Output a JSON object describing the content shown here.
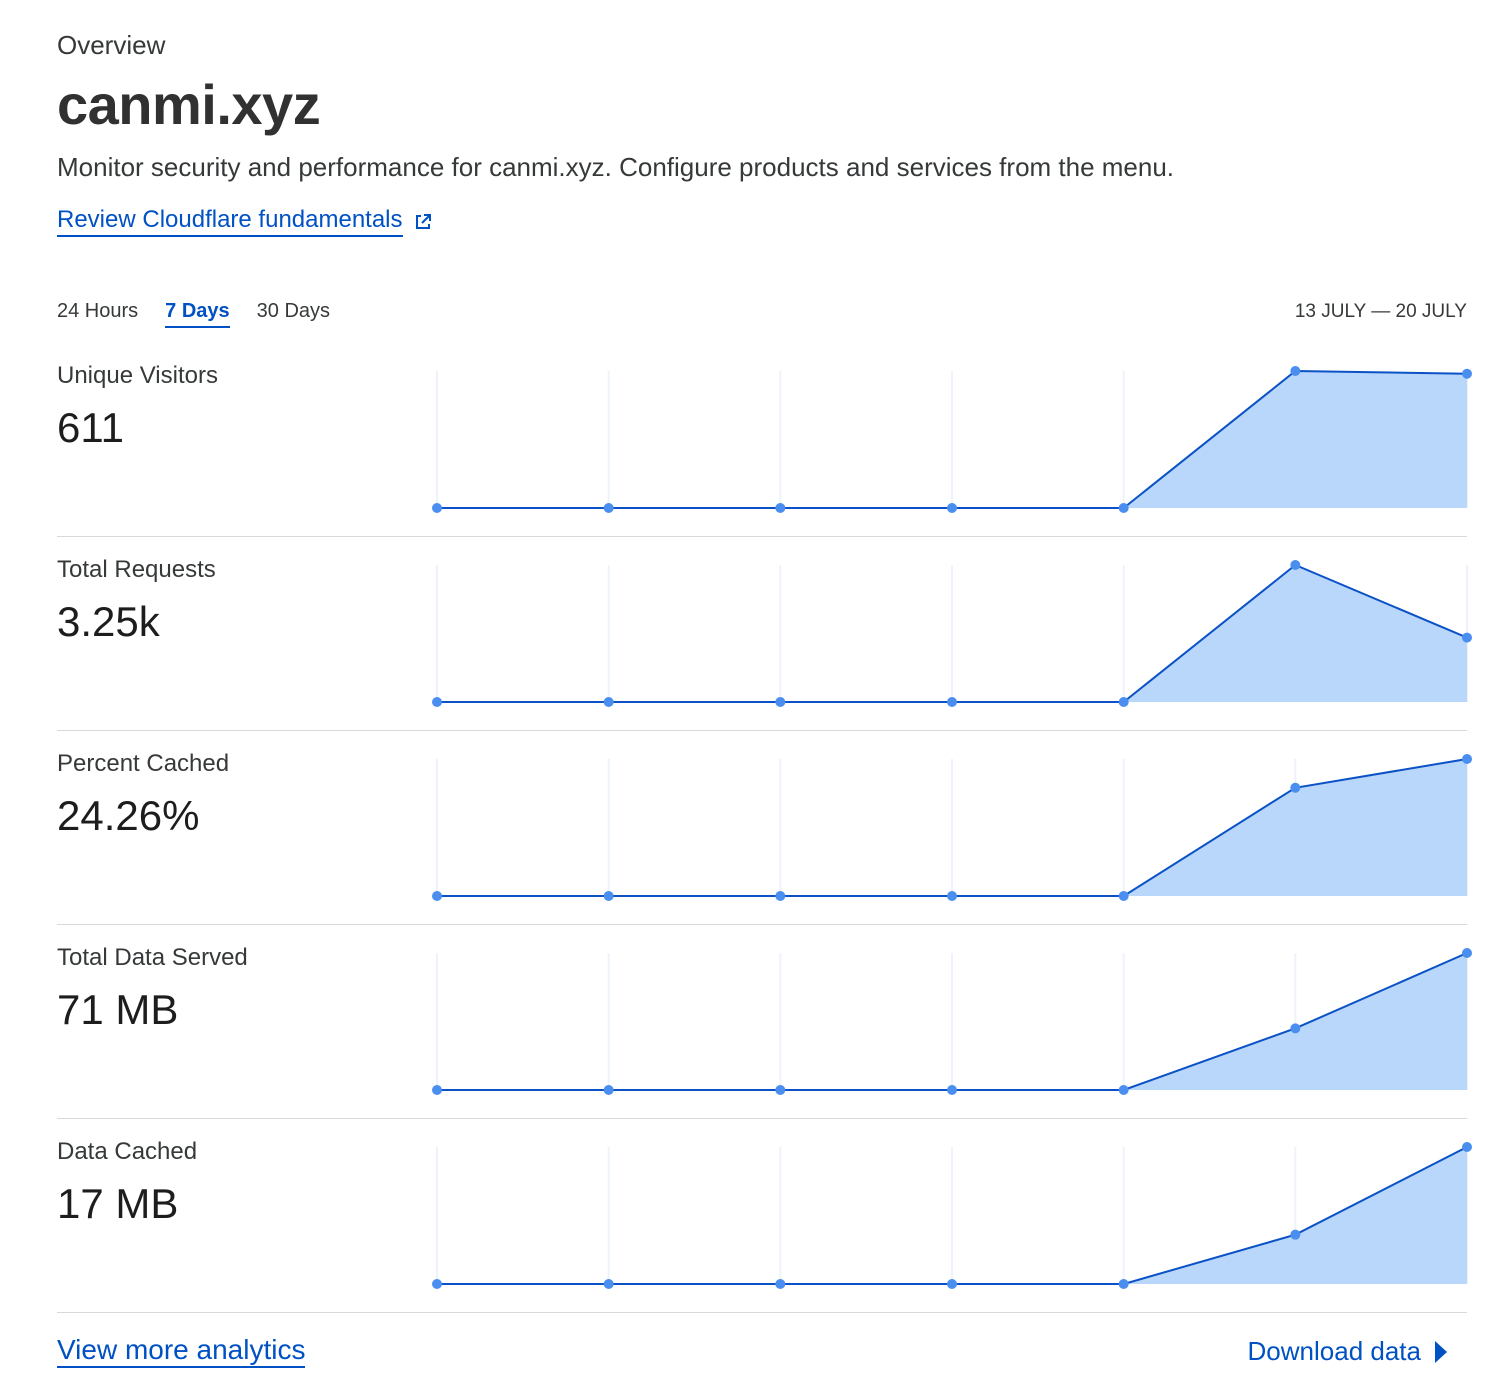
{
  "header": {
    "overview": "Overview",
    "zone": "canmi.xyz",
    "description": "Monitor security and performance for canmi.xyz. Configure products and services from the menu.",
    "fundamentals_link": "Review Cloudflare fundamentals"
  },
  "time_ranges": [
    {
      "label": "24 Hours",
      "active": false
    },
    {
      "label": "7 Days",
      "active": true
    },
    {
      "label": "30 Days",
      "active": false
    }
  ],
  "date_range": "13 JULY — 20 JULY",
  "colors": {
    "accent": "#0051c3",
    "line": "#0a52c5",
    "point": "#4a8ff0",
    "fill": "#b9d6fb",
    "grid": "#eef3fb"
  },
  "metrics": [
    {
      "label": "Unique Visitors",
      "value": "611"
    },
    {
      "label": "Total Requests",
      "value": "3.25k"
    },
    {
      "label": "Percent Cached",
      "value": "24.26%"
    },
    {
      "label": "Total Data Served",
      "value": "71 MB"
    },
    {
      "label": "Data Cached",
      "value": "17 MB"
    }
  ],
  "chart_data": [
    {
      "type": "area",
      "series_index": 0,
      "values": [
        0,
        0,
        0,
        0,
        0,
        1.0,
        0.98
      ],
      "ylim": [
        0,
        1
      ]
    },
    {
      "type": "area",
      "series_index": 1,
      "values": [
        0,
        0,
        0,
        0,
        0,
        1.0,
        0.47
      ],
      "ylim": [
        0,
        1
      ]
    },
    {
      "type": "area",
      "series_index": 2,
      "values": [
        0,
        0,
        0,
        0,
        0,
        0.79,
        1.0
      ],
      "ylim": [
        0,
        1
      ]
    },
    {
      "type": "area",
      "series_index": 3,
      "values": [
        0,
        0,
        0,
        0,
        0,
        0.45,
        1.0
      ],
      "ylim": [
        0,
        1
      ]
    },
    {
      "type": "area",
      "series_index": 4,
      "values": [
        0,
        0,
        0,
        0,
        0,
        0.36,
        1.0
      ],
      "ylim": [
        0,
        1
      ]
    }
  ],
  "footer": {
    "more_analytics": "View more analytics",
    "download": "Download data"
  }
}
